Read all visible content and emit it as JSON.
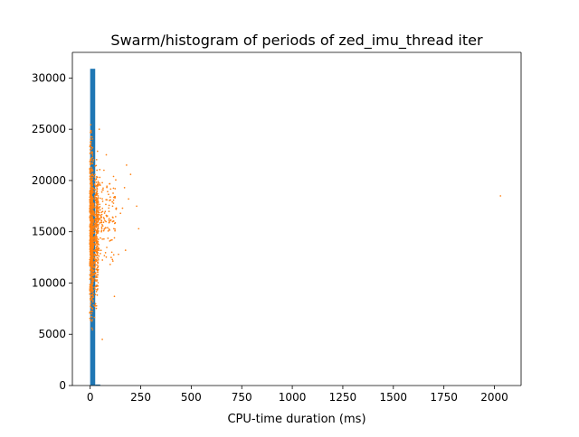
{
  "chart_data": {
    "type": "histogram+scatter",
    "title": "Swarm/histogram of periods of zed_imu_thread iter",
    "xlabel": "CPU-time duration (ms)",
    "ylabel": "",
    "xlim": [
      -88,
      2132
    ],
    "ylim": [
      0,
      32500
    ],
    "grid": false,
    "x_ticks": [
      0,
      250,
      500,
      750,
      1000,
      1250,
      1500,
      1750,
      2000
    ],
    "x_tick_labels": [
      "0",
      "250",
      "500",
      "750",
      "1000",
      "1250",
      "1500",
      "1750",
      "2000"
    ],
    "y_ticks": [
      0,
      5000,
      10000,
      15000,
      20000,
      25000,
      30000
    ],
    "y_tick_labels": [
      "0",
      "5000",
      "10000",
      "15000",
      "20000",
      "25000",
      "30000"
    ],
    "colors": {
      "histogram": "#1f77b4",
      "swarm": "#ff7f0e"
    },
    "histogram": {
      "bins": [
        {
          "x0": 0,
          "x1": 25,
          "count": 30900
        },
        {
          "x0": 25,
          "x1": 50,
          "count": 100
        }
      ]
    },
    "swarm": {
      "dense_band": {
        "x_min": -2,
        "x_max": 12,
        "y_min": 2000,
        "y_max": 28500,
        "count": 700
      },
      "mid_band": {
        "x_min": 10,
        "x_max": 40,
        "y_min": 3000,
        "y_max": 26000,
        "count": 350
      },
      "sparse_band": {
        "x_min": 30,
        "x_max": 130,
        "y_min": 9000,
        "y_max": 24000,
        "count": 260
      },
      "outliers": [
        {
          "x": 2030,
          "y": 18500
        },
        {
          "x": 240,
          "y": 15300
        },
        {
          "x": 230,
          "y": 17500
        },
        {
          "x": 200,
          "y": 20600
        },
        {
          "x": 190,
          "y": 18200
        },
        {
          "x": 180,
          "y": 21500
        },
        {
          "x": 175,
          "y": 13200
        },
        {
          "x": 170,
          "y": 19300
        },
        {
          "x": 160,
          "y": 17300
        },
        {
          "x": 150,
          "y": 16800
        },
        {
          "x": 140,
          "y": 12800
        },
        {
          "x": 120,
          "y": 8700
        },
        {
          "x": 110,
          "y": 12300
        },
        {
          "x": 60,
          "y": 4500
        },
        {
          "x": 45,
          "y": 25000
        }
      ]
    }
  }
}
